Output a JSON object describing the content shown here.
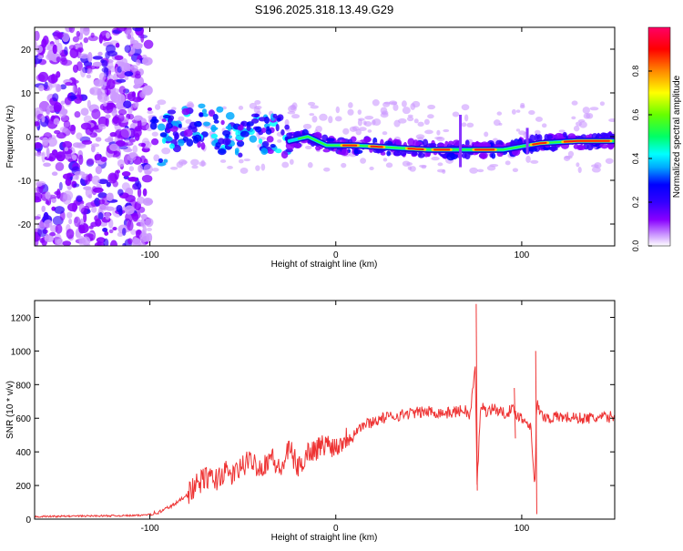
{
  "title": "S196.2025.318.13.49.G29",
  "chart_data": [
    {
      "type": "heatmap",
      "name": "spectrogram",
      "xlabel": "Height of straight line (km)",
      "ylabel": "Frequency (Hz)",
      "xlim": [
        -162,
        150
      ],
      "ylim": [
        -25,
        25
      ],
      "xticks": [
        -100,
        0,
        100
      ],
      "yticks": [
        -20,
        -10,
        0,
        10,
        20
      ],
      "ridge": [
        {
          "x": -95,
          "y": -2
        },
        {
          "x": -85,
          "y": 2
        },
        {
          "x": -75,
          "y": 3
        },
        {
          "x": -65,
          "y": 2
        },
        {
          "x": -55,
          "y": 0
        },
        {
          "x": -45,
          "y": 1
        },
        {
          "x": -35,
          "y": 0
        },
        {
          "x": -25,
          "y": -1
        },
        {
          "x": -15,
          "y": 0
        },
        {
          "x": -5,
          "y": -2
        },
        {
          "x": 10,
          "y": -2
        },
        {
          "x": 30,
          "y": -2.5
        },
        {
          "x": 50,
          "y": -3
        },
        {
          "x": 70,
          "y": -3
        },
        {
          "x": 90,
          "y": -3
        },
        {
          "x": 110,
          "y": -1.5
        },
        {
          "x": 130,
          "y": -1
        },
        {
          "x": 150,
          "y": -1
        }
      ],
      "colorbar": {
        "label": "Normalized spectral amplitude",
        "ticks": [
          0.0,
          0.2,
          0.4,
          0.6,
          0.8
        ],
        "tick_labels": [
          "0.0",
          "0.2",
          "0.4",
          "0.6",
          "0.8"
        ],
        "range": [
          0,
          1
        ],
        "colors": [
          "#ffffff",
          "#cc99ff",
          "#8800ff",
          "#3300ff",
          "#0000ff",
          "#00aaff",
          "#00ffff",
          "#00ff66",
          "#66ff00",
          "#ffff00",
          "#ff8800",
          "#ff0000",
          "#ff0066"
        ]
      }
    },
    {
      "type": "line",
      "name": "snr",
      "xlabel": "Height of straight line (km)",
      "ylabel": "SNR (10 * v/v)",
      "xlim": [
        -162,
        150
      ],
      "ylim": [
        0,
        1300
      ],
      "xticks": [
        -100,
        0,
        100
      ],
      "yticks": [
        0,
        200,
        400,
        600,
        800,
        1000,
        1200
      ],
      "color": "#ee3333",
      "series": {
        "name": "SNR",
        "x": [
          -162,
          -140,
          -120,
          -105,
          -95,
          -85,
          -80,
          -75,
          -70,
          -65,
          -60,
          -55,
          -50,
          -45,
          -40,
          -35,
          -30,
          -25,
          -20,
          -15,
          -10,
          -5,
          0,
          5,
          10,
          15,
          20,
          25,
          30,
          40,
          50,
          60,
          70,
          72,
          75,
          76,
          78,
          80,
          85,
          90,
          95,
          100,
          105,
          107,
          108,
          110,
          115,
          120,
          130,
          140,
          150
        ],
        "y": [
          15,
          18,
          20,
          22,
          40,
          100,
          150,
          200,
          250,
          230,
          280,
          260,
          320,
          350,
          300,
          380,
          280,
          420,
          300,
          400,
          420,
          450,
          430,
          480,
          520,
          560,
          580,
          600,
          610,
          630,
          640,
          630,
          650,
          600,
          900,
          200,
          700,
          640,
          660,
          630,
          650,
          600,
          560,
          150,
          700,
          620,
          600,
          610,
          600,
          600,
          610
        ]
      },
      "spikes": [
        {
          "x": 75.5,
          "high": 1280,
          "low": 170
        },
        {
          "x": 107.5,
          "high": 1000,
          "low": 30
        },
        {
          "x": 96,
          "high": 780,
          "low": 480
        }
      ]
    }
  ]
}
